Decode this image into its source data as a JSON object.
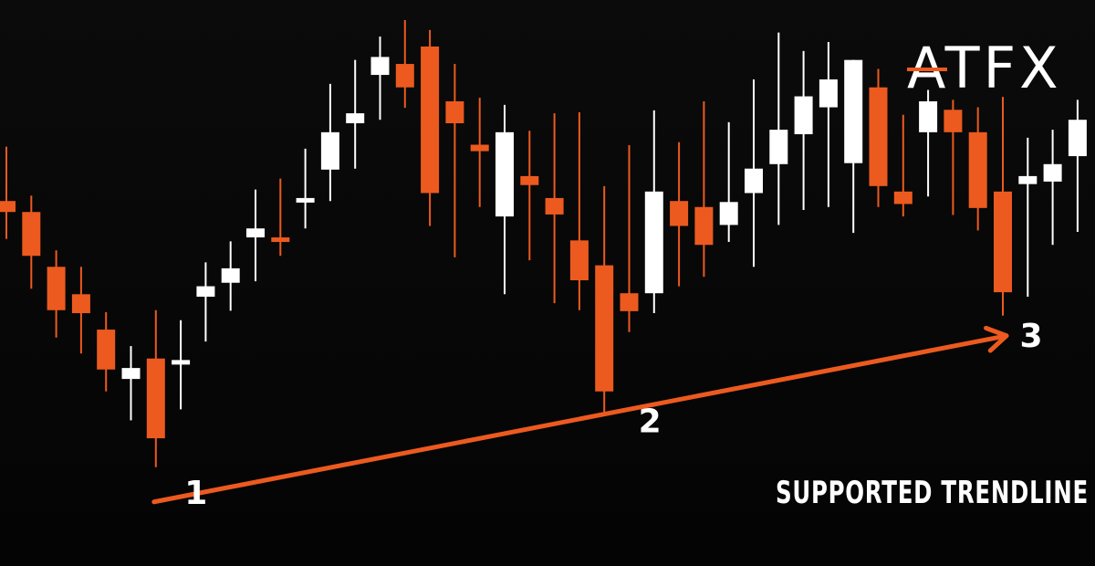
{
  "brand": {
    "name": "ATFX"
  },
  "caption": "SUPPORTED TRENDLINE",
  "points": [
    "1",
    "2",
    "3"
  ],
  "colors": {
    "background": "#050505",
    "bear": "#ec5a1f",
    "bull": "#ffffff",
    "trendline": "#ec5a1f",
    "text": "#ffffff"
  },
  "chart_data": {
    "type": "candlestick",
    "title": "",
    "xlabel": "",
    "ylabel": "",
    "ylim": [
      0,
      100
    ],
    "grid": false,
    "legend": "none",
    "series": [
      {
        "dir": "down",
        "o": 63.7,
        "c": 61.5,
        "h": 74.6,
        "l": 56.1
      },
      {
        "dir": "down",
        "o": 61.5,
        "c": 52.7,
        "h": 64.8,
        "l": 46.1
      },
      {
        "dir": "down",
        "o": 50.5,
        "c": 41.8,
        "h": 53.8,
        "l": 36.3
      },
      {
        "dir": "down",
        "o": 45.0,
        "c": 41.2,
        "h": 50.5,
        "l": 33.1
      },
      {
        "dir": "down",
        "o": 37.9,
        "c": 29.9,
        "h": 41.4,
        "l": 25.5
      },
      {
        "dir": "up",
        "o": 28.0,
        "c": 30.2,
        "h": 34.6,
        "l": 19.7
      },
      {
        "dir": "down",
        "o": 32.1,
        "c": 16.1,
        "h": 41.8,
        "l": 10.3
      },
      {
        "dir": "up",
        "o": 31.0,
        "c": 31.8,
        "h": 39.8,
        "l": 21.9
      },
      {
        "dir": "up",
        "o": 44.5,
        "c": 46.6,
        "h": 51.4,
        "l": 35.5
      },
      {
        "dir": "up",
        "o": 47.3,
        "c": 50.2,
        "h": 55.6,
        "l": 41.7
      },
      {
        "dir": "up",
        "o": 56.4,
        "c": 58.2,
        "h": 66.0,
        "l": 47.6
      },
      {
        "dir": "down",
        "o": 56.4,
        "c": 55.5,
        "h": 68.2,
        "l": 52.7
      },
      {
        "dir": "up",
        "o": 63.5,
        "c": 64.3,
        "h": 74.2,
        "l": 58.2
      },
      {
        "dir": "up",
        "o": 70.0,
        "c": 77.5,
        "h": 87.2,
        "l": 63.7
      },
      {
        "dir": "up",
        "o": 79.3,
        "c": 81.3,
        "h": 92.0,
        "l": 70.2
      },
      {
        "dir": "up",
        "o": 89.0,
        "c": 92.6,
        "h": 96.7,
        "l": 80.0
      },
      {
        "dir": "down",
        "o": 91.2,
        "c": 86.5,
        "h": 100.0,
        "l": 82.4
      },
      {
        "dir": "down",
        "o": 94.7,
        "c": 65.3,
        "h": 98.0,
        "l": 58.7
      },
      {
        "dir": "down",
        "o": 83.7,
        "c": 79.3,
        "h": 91.2,
        "l": 52.4
      },
      {
        "dir": "down",
        "o": 75.0,
        "c": 73.7,
        "h": 84.4,
        "l": 62.5
      },
      {
        "dir": "up",
        "o": 60.6,
        "c": 77.5,
        "h": 83.0,
        "l": 45.0
      },
      {
        "dir": "down",
        "o": 68.7,
        "c": 66.9,
        "h": 77.8,
        "l": 51.8
      },
      {
        "dir": "down",
        "o": 64.3,
        "c": 61.0,
        "h": 81.3,
        "l": 43.2
      },
      {
        "dir": "down",
        "o": 55.8,
        "c": 47.8,
        "h": 81.5,
        "l": 41.8
      },
      {
        "dir": "down",
        "o": 50.8,
        "c": 25.5,
        "h": 66.7,
        "l": 20.6
      },
      {
        "dir": "down",
        "o": 45.2,
        "c": 41.6,
        "h": 74.9,
        "l": 37.4
      },
      {
        "dir": "up",
        "o": 45.2,
        "c": 65.6,
        "h": 81.9,
        "l": 41.2
      },
      {
        "dir": "down",
        "o": 63.7,
        "c": 58.7,
        "h": 75.5,
        "l": 46.6
      },
      {
        "dir": "down",
        "o": 62.5,
        "c": 54.9,
        "h": 83.7,
        "l": 48.5
      },
      {
        "dir": "up",
        "o": 58.9,
        "c": 63.5,
        "h": 79.5,
        "l": 55.5
      },
      {
        "dir": "up",
        "o": 65.3,
        "c": 70.2,
        "h": 88.1,
        "l": 50.5
      },
      {
        "dir": "up",
        "o": 71.1,
        "c": 78.0,
        "h": 97.5,
        "l": 58.9
      },
      {
        "dir": "up",
        "o": 77.1,
        "c": 84.7,
        "h": 93.8,
        "l": 61.9
      },
      {
        "dir": "up",
        "o": 82.5,
        "c": 88.1,
        "h": 95.6,
        "l": 62.5
      },
      {
        "dir": "up",
        "o": 71.3,
        "c": 92.0,
        "h": 92.0,
        "l": 57.3
      },
      {
        "dir": "down",
        "o": 86.5,
        "c": 66.7,
        "h": 90.2,
        "l": 62.5
      },
      {
        "dir": "down",
        "o": 65.6,
        "c": 63.1,
        "h": 81.0,
        "l": 60.6
      },
      {
        "dir": "up",
        "o": 77.5,
        "c": 83.7,
        "h": 86.0,
        "l": 64.6
      },
      {
        "dir": "down",
        "o": 82.0,
        "c": 77.5,
        "h": 84.0,
        "l": 60.9
      },
      {
        "dir": "down",
        "o": 77.5,
        "c": 62.3,
        "h": 82.5,
        "l": 57.8
      },
      {
        "dir": "down",
        "o": 65.6,
        "c": 45.4,
        "h": 84.6,
        "l": 40.7
      },
      {
        "dir": "up",
        "o": 67.1,
        "c": 68.7,
        "h": 76.4,
        "l": 44.5
      },
      {
        "dir": "up",
        "o": 67.6,
        "c": 71.1,
        "h": 78.0,
        "l": 54.9
      },
      {
        "dir": "up",
        "o": 72.7,
        "c": 80.0,
        "h": 84.0,
        "l": 57.5
      }
    ],
    "annotations": [
      {
        "label": "1",
        "index": 6
      },
      {
        "label": "2",
        "index": 24
      },
      {
        "label": "3",
        "index": 40
      }
    ]
  }
}
